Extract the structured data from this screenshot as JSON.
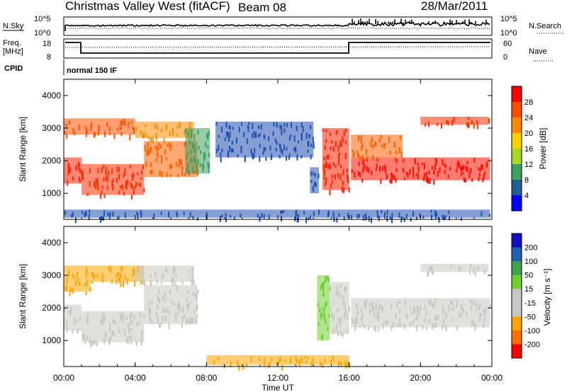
{
  "header": {
    "station": "Christmas Valley West (fitACF)",
    "beam": "Beam 08",
    "date": "28/Mar/2011"
  },
  "panels": {
    "nsky_label": "N.Sky",
    "nsearch_label": "N.Search",
    "freq_label_1": "Freq.",
    "freq_label_2": "[MHz]",
    "nave_label": "Nave",
    "cpid_label": "CPID",
    "cpid_value": "normal 150 IF",
    "nsky_ticks": [
      "10^5",
      "10^0"
    ],
    "nsearch_ticks": [
      "10^5",
      "10^0"
    ],
    "freq_ticks": [
      "18",
      "8"
    ],
    "nave_ticks": [
      "60",
      "0"
    ]
  },
  "chart_data": [
    {
      "type": "heatmap",
      "name": "power",
      "ylabel": "Slant Range [km]",
      "xlabel": "",
      "x_ticks": [
        "00:00",
        "04:00",
        "08:00",
        "12:00",
        "16:00",
        "20:00",
        "00:00"
      ],
      "xlim_hours": [
        0,
        24
      ],
      "y_ticks": [
        1000,
        2000,
        3000,
        4000
      ],
      "ylim": [
        200,
        4500
      ],
      "colorbar": {
        "label": "Power [dB]",
        "ticks": [
          "28",
          "24",
          "20",
          "16",
          "12",
          "8",
          "4"
        ],
        "colors": [
          "#ff0000",
          "#ff4a00",
          "#ff8c00",
          "#ffd000",
          "#a8d820",
          "#40a060",
          "#206090",
          "#0000ff"
        ]
      },
      "regions": [
        {
          "x0": 0.0,
          "x1": 1.0,
          "y0": 1300,
          "y1": 2100,
          "color": "#ff2000"
        },
        {
          "x0": 1.0,
          "x1": 4.5,
          "y0": 950,
          "y1": 1900,
          "color": "#ff3000"
        },
        {
          "x0": 4.5,
          "x1": 7.5,
          "y0": 1500,
          "y1": 2600,
          "color": "#ff6000"
        },
        {
          "x0": 0.0,
          "x1": 4.0,
          "y0": 2800,
          "y1": 3300,
          "color": "#ff5000"
        },
        {
          "x0": 4.0,
          "x1": 7.3,
          "y0": 2700,
          "y1": 3200,
          "color": "#ff8c00"
        },
        {
          "x0": 6.8,
          "x1": 8.2,
          "y0": 1600,
          "y1": 3000,
          "color": "#40a060"
        },
        {
          "x0": 14.5,
          "x1": 16.0,
          "y0": 1100,
          "y1": 3000,
          "color": "#ff2000"
        },
        {
          "x0": 16.1,
          "x1": 23.9,
          "y0": 1400,
          "y1": 2100,
          "color": "#ff1000"
        },
        {
          "x0": 16.1,
          "x1": 19.0,
          "y0": 2100,
          "y1": 2800,
          "color": "#ff6000"
        },
        {
          "x0": 20.0,
          "x1": 23.8,
          "y0": 3100,
          "y1": 3350,
          "color": "#ff3000"
        },
        {
          "x0": 8.5,
          "x1": 14.0,
          "y0": 2100,
          "y1": 3200,
          "color": "#2050b0"
        },
        {
          "x0": 13.8,
          "x1": 14.3,
          "y0": 1000,
          "y1": 1800,
          "color": "#2050b0"
        },
        {
          "x0": 0.0,
          "x1": 23.9,
          "y0": 250,
          "y1": 500,
          "color": "#2050b0"
        }
      ]
    },
    {
      "type": "heatmap",
      "name": "velocity",
      "ylabel": "Slant Range [km]",
      "xlabel": "Time UT",
      "x_ticks": [
        "00:00",
        "04:00",
        "08:00",
        "12:00",
        "16:00",
        "20:00",
        "00:00"
      ],
      "xlim_hours": [
        0,
        24
      ],
      "y_ticks": [
        1000,
        2000,
        3000,
        4000
      ],
      "ylim": [
        200,
        4500
      ],
      "colorbar": {
        "label": "Velocity [m s⁻¹]",
        "ticks": [
          "200",
          "100",
          "50",
          "15",
          "-15",
          "-50",
          "-100",
          "-200"
        ],
        "colors": [
          "#1010c0",
          "#2060b0",
          "#40a050",
          "#70d030",
          "#c8c8c0",
          "#c8c8c0",
          "#ffa500",
          "#ff7000",
          "#ff0000"
        ]
      },
      "regions": [
        {
          "x0": 0.0,
          "x1": 1.0,
          "y0": 1300,
          "y1": 2100,
          "color": "#c8c8c0"
        },
        {
          "x0": 1.0,
          "x1": 4.5,
          "y0": 950,
          "y1": 1900,
          "color": "#c8c8c0"
        },
        {
          "x0": 4.5,
          "x1": 7.5,
          "y0": 1500,
          "y1": 2700,
          "color": "#c8c8c0"
        },
        {
          "x0": 0.0,
          "x1": 4.5,
          "y0": 2800,
          "y1": 3300,
          "color": "#ffa500"
        },
        {
          "x0": 4.0,
          "x1": 7.3,
          "y0": 2800,
          "y1": 3300,
          "color": "#c8c8c0"
        },
        {
          "x0": 14.2,
          "x1": 14.9,
          "y0": 1000,
          "y1": 3000,
          "color": "#70d030"
        },
        {
          "x0": 14.9,
          "x1": 16.0,
          "y0": 1200,
          "y1": 2800,
          "color": "#c8c8c0"
        },
        {
          "x0": 16.1,
          "x1": 23.9,
          "y0": 1400,
          "y1": 2300,
          "color": "#c8c8c0"
        },
        {
          "x0": 20.0,
          "x1": 23.8,
          "y0": 3100,
          "y1": 3350,
          "color": "#c8c8c0"
        },
        {
          "x0": 8.0,
          "x1": 16.0,
          "y0": 250,
          "y1": 550,
          "color": "#ffa500"
        },
        {
          "x0": 0.0,
          "x1": 1.5,
          "y0": 2500,
          "y1": 2800,
          "color": "#ffa500"
        }
      ]
    }
  ]
}
